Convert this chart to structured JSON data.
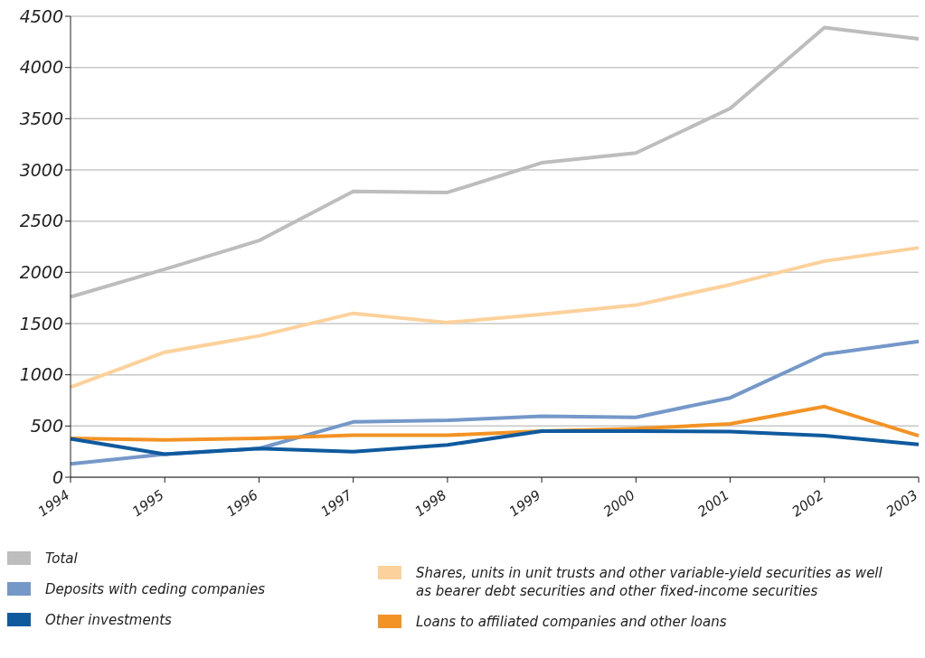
{
  "chart_data": {
    "type": "line",
    "categories": [
      "1994",
      "1995",
      "1996",
      "1997",
      "1998",
      "1999",
      "2000",
      "2001",
      "2002",
      "2003"
    ],
    "series": [
      {
        "name": "Total",
        "color": "#bdbdbd",
        "values": [
          1760,
          2030,
          2310,
          2790,
          2780,
          3070,
          3165,
          3600,
          4390,
          4280
        ]
      },
      {
        "name": "Shares, units in unit trusts and other variable-yield securities as well as bearer debt securities and other fixed-income securities",
        "color": "#fdd19b",
        "values": [
          880,
          1220,
          1380,
          1600,
          1510,
          1590,
          1680,
          1880,
          2110,
          2240
        ]
      },
      {
        "name": "Deposits with ceding companies",
        "color": "#7598c9",
        "values": [
          130,
          225,
          280,
          540,
          555,
          595,
          585,
          775,
          1200,
          1325
        ]
      },
      {
        "name": "Loans to affiliated companies and other loans",
        "color": "#f39325",
        "values": [
          380,
          365,
          380,
          410,
          410,
          450,
          475,
          520,
          690,
          405
        ]
      },
      {
        "name": "Other investments",
        "color": "#0f5a9e",
        "values": [
          375,
          225,
          280,
          250,
          315,
          450,
          450,
          445,
          405,
          320
        ]
      }
    ],
    "ylim": [
      0,
      4500
    ],
    "yticks": [
      0,
      500,
      1000,
      1500,
      2000,
      2500,
      3000,
      3500,
      4000,
      4500
    ],
    "grid": "y",
    "legend": "bottom",
    "marker": "none",
    "line_style": "solid"
  }
}
